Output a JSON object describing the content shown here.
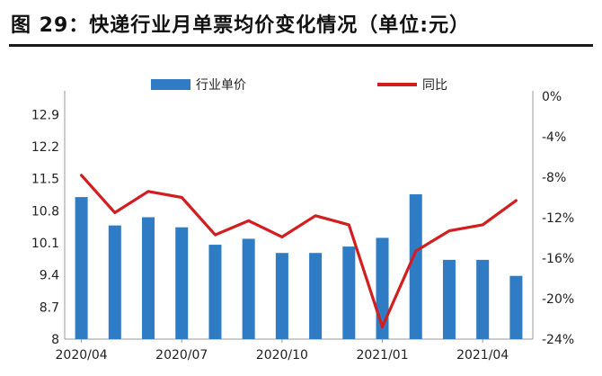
{
  "header": {
    "title": "图 29：快递行业月单票均价变化情况（单位:元）"
  },
  "legend": {
    "bar_label": "行业单价",
    "line_label": "同比"
  },
  "colors": {
    "bar": "#2f7cc4",
    "line": "#d21e1e"
  },
  "chart_data": {
    "type": "bar",
    "categories": [
      "2020/04",
      "2020/05",
      "2020/06",
      "2020/07",
      "2020/08",
      "2020/09",
      "2020/10",
      "2020/11",
      "2020/12",
      "2021/01",
      "2021/02",
      "2021/03",
      "2021/04",
      "2021/05"
    ],
    "x_tick_labels": [
      "2020/04",
      "2020/07",
      "2020/10",
      "2021/01",
      "2021/04"
    ],
    "series": [
      {
        "name": "行业单价",
        "type": "bar",
        "axis": "left",
        "values": [
          11.1,
          10.48,
          10.66,
          10.44,
          10.06,
          10.19,
          9.88,
          9.88,
          10.02,
          10.21,
          11.16,
          9.73,
          9.73,
          9.38
        ]
      },
      {
        "name": "同比",
        "type": "line",
        "axis": "right",
        "unit": "%",
        "values": [
          -7.8,
          -11.5,
          -9.4,
          -10.0,
          -13.7,
          -12.3,
          -13.9,
          -11.8,
          -12.7,
          -22.8,
          -15.3,
          -13.3,
          -12.7,
          -10.3
        ]
      }
    ],
    "y_left": {
      "ylim": [
        8,
        13.3
      ],
      "ticks": [
        "8",
        "8.7",
        "9.4",
        "10.1",
        "10.8",
        "11.5",
        "12.2",
        "12.9"
      ]
    },
    "y_right": {
      "ylim": [
        -24,
        0
      ],
      "ticks": [
        "0%",
        "-4%",
        "-8%",
        "-12%",
        "-16%",
        "-20%",
        "-24%"
      ]
    },
    "legend_position": "top",
    "grid": false
  }
}
